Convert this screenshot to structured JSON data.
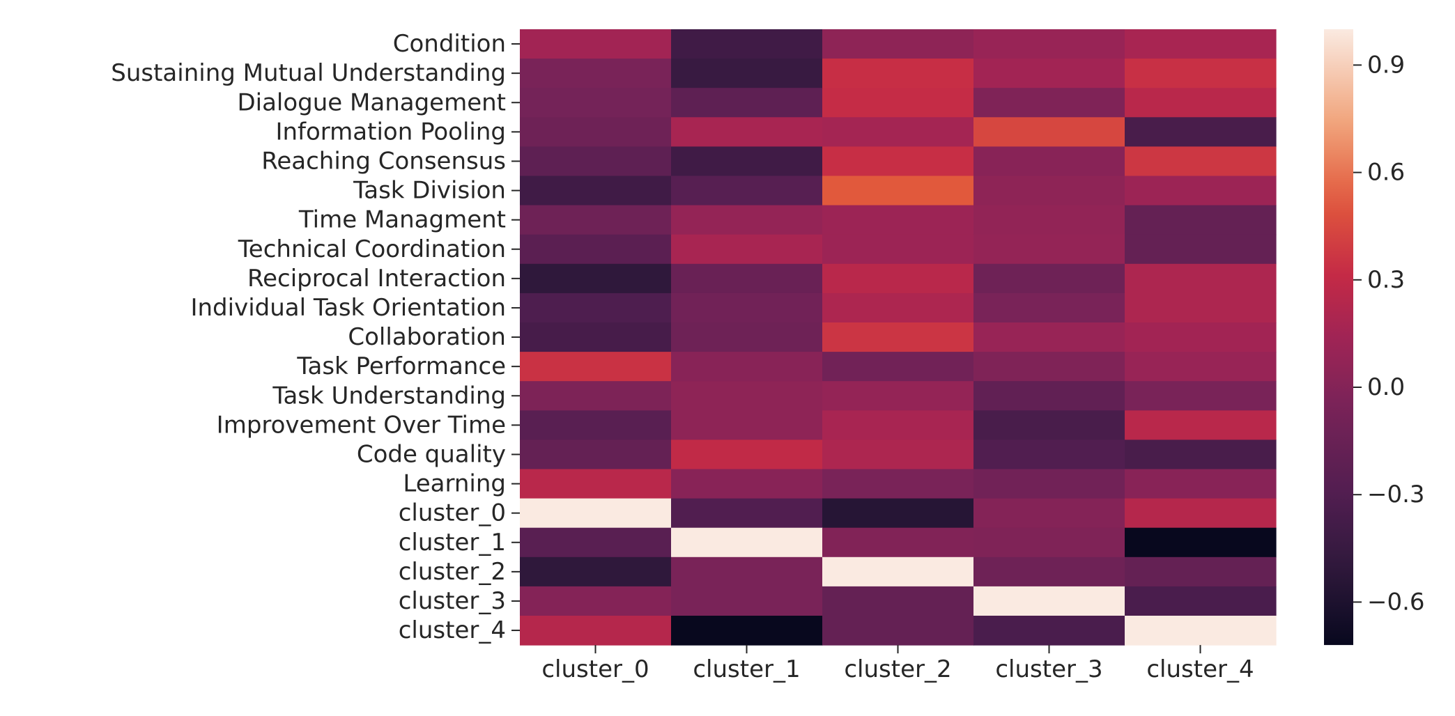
{
  "chart_data": {
    "type": "heatmap",
    "title": "",
    "xlabel": "",
    "ylabel": "",
    "columns": [
      "cluster_0",
      "cluster_1",
      "cluster_2",
      "cluster_3",
      "cluster_4"
    ],
    "rows": [
      "Condition",
      "Sustaining Mutual Understanding",
      "Dialogue Management",
      "Information Pooling",
      "Reaching Consensus",
      "Task Division",
      "Time Managment",
      "Technical Coordination",
      "Reciprocal Interaction",
      "Individual Task Orientation",
      "Collaboration",
      "Task Performance",
      "Task Understanding",
      "Improvement Over Time",
      "Code quality",
      "Learning",
      "cluster_0",
      "cluster_1",
      "cluster_2",
      "cluster_3",
      "cluster_4"
    ],
    "values": [
      [
        0.15,
        -0.4,
        0.05,
        0.1,
        0.18
      ],
      [
        -0.05,
        -0.45,
        0.33,
        0.15,
        0.34
      ],
      [
        -0.08,
        -0.22,
        0.32,
        -0.02,
        0.26
      ],
      [
        -0.12,
        0.18,
        0.16,
        0.44,
        -0.35
      ],
      [
        -0.22,
        -0.4,
        0.33,
        0.02,
        0.37
      ],
      [
        -0.4,
        -0.26,
        0.52,
        0.05,
        0.12
      ],
      [
        -0.12,
        0.08,
        0.12,
        0.07,
        -0.18
      ],
      [
        -0.24,
        0.18,
        0.12,
        0.08,
        -0.18
      ],
      [
        -0.5,
        -0.15,
        0.26,
        -0.12,
        0.2
      ],
      [
        -0.32,
        -0.1,
        0.2,
        -0.05,
        0.2
      ],
      [
        -0.36,
        -0.12,
        0.36,
        0.1,
        0.15
      ],
      [
        0.35,
        0.02,
        -0.1,
        -0.02,
        0.1
      ],
      [
        -0.03,
        0.05,
        0.08,
        -0.2,
        -0.05
      ],
      [
        -0.25,
        0.05,
        0.18,
        -0.35,
        0.26
      ],
      [
        -0.18,
        0.3,
        0.2,
        -0.3,
        -0.35
      ],
      [
        0.26,
        0.02,
        -0.05,
        -0.1,
        0.02
      ],
      [
        1.0,
        -0.3,
        -0.55,
        0.0,
        0.24
      ],
      [
        -0.25,
        1.0,
        -0.01,
        -0.02,
        -0.72
      ],
      [
        -0.5,
        -0.05,
        1.0,
        -0.12,
        -0.18
      ],
      [
        0.0,
        -0.05,
        -0.18,
        1.0,
        -0.34
      ],
      [
        0.24,
        -0.72,
        -0.18,
        -0.34,
        1.0
      ]
    ],
    "vmin": -0.72,
    "vmax": 1.0,
    "colormap": "rocket",
    "colorbar_ticks": [
      0.9,
      0.6,
      0.3,
      0.0,
      -0.3,
      -0.6
    ],
    "colorbar_tick_labels": [
      "0.9",
      "0.6",
      "0.3",
      "0.0",
      "−0.3",
      "−0.6"
    ],
    "grid": false
  }
}
